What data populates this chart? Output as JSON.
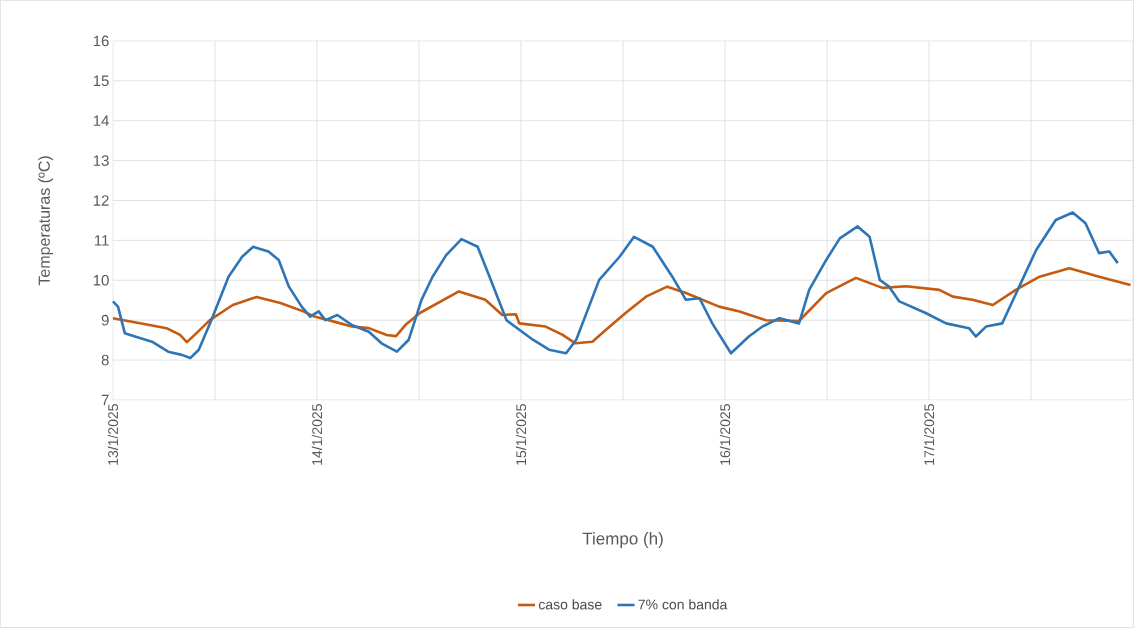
{
  "chart_data": {
    "type": "line",
    "xlabel": "Tiempo (h)",
    "ylabel": "Temperaturas (ºC)",
    "xlim": [
      "2025-01-13T00:00",
      "2025-01-18T00:00"
    ],
    "ylim": [
      7,
      16
    ],
    "xticks": [
      {
        "value": "2025-01-13T00:00",
        "label": "13/1/2025"
      },
      {
        "value": "2025-01-13T12:00",
        "label": null
      },
      {
        "value": "2025-01-14T00:00",
        "label": "14/1/2025"
      },
      {
        "value": "2025-01-14T12:00",
        "label": null
      },
      {
        "value": "2025-01-15T00:00",
        "label": "15/1/2025"
      },
      {
        "value": "2025-01-15T12:00",
        "label": null
      },
      {
        "value": "2025-01-16T00:00",
        "label": "16/1/2025"
      },
      {
        "value": "2025-01-16T12:00",
        "label": null
      },
      {
        "value": "2025-01-17T00:00",
        "label": "17/1/2025"
      },
      {
        "value": "2025-01-17T12:00",
        "label": null
      },
      {
        "value": "2025-01-18T00:00",
        "label": null
      }
    ],
    "yticks": [
      7,
      8,
      9,
      10,
      11,
      12,
      13,
      14,
      15,
      16
    ],
    "grid": true,
    "legend": "bottom",
    "series": [
      {
        "name": "caso base",
        "color": "#c55a11",
        "x": [
          "2025-01-13T00:00",
          "2025-01-13T04:18",
          "2025-01-13T06:18",
          "2025-01-13T07:54",
          "2025-01-13T08:42",
          "2025-01-13T09:48",
          "2025-01-13T11:24",
          "2025-01-13T14:06",
          "2025-01-13T16:54",
          "2025-01-13T19:42",
          "2025-01-13T22:24",
          "2025-01-13T23:42",
          "2025-01-14T01:54",
          "2025-01-14T04:06",
          "2025-01-14T06:06",
          "2025-01-14T08:12",
          "2025-01-14T09:18",
          "2025-01-14T10:30",
          "2025-01-14T12:06",
          "2025-01-14T16:42",
          "2025-01-14T19:48",
          "2025-01-14T21:48",
          "2025-01-14T23:24",
          "2025-01-14T23:48",
          "2025-01-15T02:54",
          "2025-01-15T04:54",
          "2025-01-15T06:24",
          "2025-01-15T08:24",
          "2025-01-15T10:00",
          "2025-01-15T12:18",
          "2025-01-15T14:42",
          "2025-01-15T17:12",
          "2025-01-15T19:24",
          "2025-01-15T23:18",
          "2025-01-16T01:42",
          "2025-01-16T04:48",
          "2025-01-16T08:42",
          "2025-01-16T11:54",
          "2025-01-16T15:24",
          "2025-01-16T18:30",
          "2025-01-16T21:18",
          "2025-01-17T01:12",
          "2025-01-17T02:48",
          "2025-01-17T05:06",
          "2025-01-17T07:30",
          "2025-01-17T10:12",
          "2025-01-17T13:00",
          "2025-01-17T16:30",
          "2025-01-17T20:00",
          "2025-01-17T23:42"
        ],
        "values": [
          9.05,
          8.88,
          8.8,
          8.63,
          8.45,
          8.67,
          9.0,
          9.38,
          9.58,
          9.43,
          9.22,
          9.09,
          8.97,
          8.84,
          8.8,
          8.63,
          8.6,
          8.9,
          9.18,
          9.72,
          9.51,
          9.13,
          9.15,
          8.92,
          8.84,
          8.63,
          8.42,
          8.46,
          8.76,
          9.18,
          9.59,
          9.84,
          9.68,
          9.34,
          9.22,
          9.0,
          8.98,
          9.68,
          10.06,
          9.81,
          9.85,
          9.76,
          9.59,
          9.51,
          9.38,
          9.76,
          10.09,
          10.3,
          10.09,
          9.88
        ]
      },
      {
        "name": "7% con banda",
        "color": "#2e75b6",
        "x": [
          "2025-01-13T00:00",
          "2025-01-13T00:36",
          "2025-01-13T01:24",
          "2025-01-13T02:36",
          "2025-01-13T04:36",
          "2025-01-13T06:30",
          "2025-01-13T08:06",
          "2025-01-13T09:06",
          "2025-01-13T10:06",
          "2025-01-13T11:36",
          "2025-01-13T13:36",
          "2025-01-13T15:12",
          "2025-01-13T16:30",
          "2025-01-13T18:18",
          "2025-01-13T19:30",
          "2025-01-13T20:42",
          "2025-01-13T22:12",
          "2025-01-13T23:12",
          "2025-01-14T00:12",
          "2025-01-14T01:00",
          "2025-01-14T02:24",
          "2025-01-14T04:06",
          "2025-01-14T06:06",
          "2025-01-14T07:36",
          "2025-01-14T09:24",
          "2025-01-14T10:48",
          "2025-01-14T12:18",
          "2025-01-14T13:36",
          "2025-01-14T15:12",
          "2025-01-14T17:00",
          "2025-01-14T18:54",
          "2025-01-14T20:18",
          "2025-01-14T22:18",
          "2025-01-14T23:48",
          "2025-01-15T01:24",
          "2025-01-15T03:18",
          "2025-01-15T05:18",
          "2025-01-15T06:30",
          "2025-01-15T09:12",
          "2025-01-15T11:36",
          "2025-01-15T13:18",
          "2025-01-15T15:30",
          "2025-01-15T17:48",
          "2025-01-15T19:24",
          "2025-01-15T21:00",
          "2025-01-15T22:30",
          "2025-01-16T00:42",
          "2025-01-16T02:48",
          "2025-01-16T04:24",
          "2025-01-16T06:24",
          "2025-01-16T08:42",
          "2025-01-16T09:54",
          "2025-01-16T11:54",
          "2025-01-16T13:30",
          "2025-01-16T15:36",
          "2025-01-16T17:00",
          "2025-01-16T18:12",
          "2025-01-16T19:18",
          "2025-01-16T20:30",
          "2025-01-16T23:36",
          "2025-01-17T02:00",
          "2025-01-17T04:42",
          "2025-01-17T05:30",
          "2025-01-17T06:42",
          "2025-01-17T08:36",
          "2025-01-17T10:36",
          "2025-01-17T12:36",
          "2025-01-17T14:54",
          "2025-01-17T16:54",
          "2025-01-17T18:24",
          "2025-01-17T20:00",
          "2025-01-17T21:12",
          "2025-01-17T22:12"
        ],
        "values": [
          9.47,
          9.34,
          8.67,
          8.59,
          8.46,
          8.21,
          8.13,
          8.05,
          8.26,
          9.01,
          10.09,
          10.59,
          10.84,
          10.72,
          10.51,
          9.84,
          9.34,
          9.09,
          9.22,
          9.0,
          9.13,
          8.88,
          8.71,
          8.42,
          8.21,
          8.51,
          9.51,
          10.09,
          10.63,
          11.03,
          10.84,
          10.09,
          9.0,
          8.76,
          8.51,
          8.26,
          8.17,
          8.51,
          10.01,
          10.59,
          11.09,
          10.84,
          10.09,
          9.51,
          9.55,
          8.92,
          8.17,
          8.59,
          8.84,
          9.05,
          8.92,
          9.76,
          10.51,
          11.05,
          11.35,
          11.09,
          10.01,
          9.84,
          9.47,
          9.18,
          8.92,
          8.8,
          8.59,
          8.84,
          8.92,
          9.84,
          10.76,
          11.51,
          11.7,
          11.43,
          10.68,
          10.72,
          10.43
        ]
      }
    ]
  }
}
